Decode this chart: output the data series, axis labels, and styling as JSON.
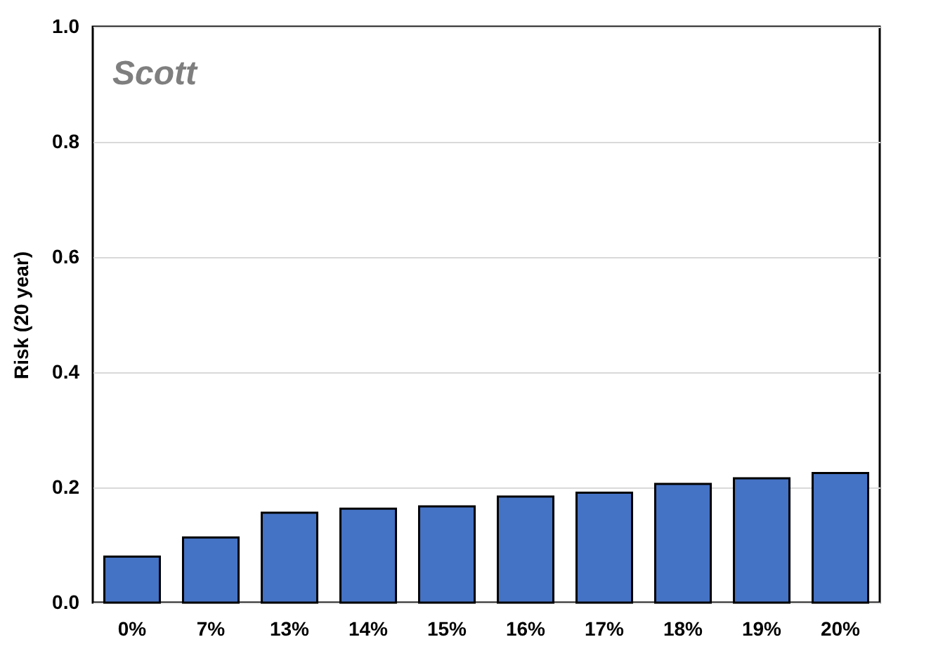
{
  "chart_data": {
    "type": "bar",
    "title": "Scott",
    "ylabel": "Risk (20 year)",
    "categories": [
      "0%",
      "7%",
      "13%",
      "14%",
      "15%",
      "16%",
      "17%",
      "18%",
      "19%",
      "20%"
    ],
    "values": [
      0.08,
      0.113,
      0.156,
      0.163,
      0.167,
      0.184,
      0.191,
      0.206,
      0.216,
      0.225
    ],
    "color": "#4472c4",
    "ylim": [
      0,
      1
    ],
    "yticks": [
      {
        "value": 0,
        "label": "0.0"
      },
      {
        "value": 0.2,
        "label": "0.2"
      },
      {
        "value": 0.4,
        "label": "0.4"
      },
      {
        "value": 0.6,
        "label": "0.6"
      },
      {
        "value": 0.8,
        "label": "0.8"
      },
      {
        "value": 1,
        "label": "1.0"
      }
    ],
    "grid": "y"
  }
}
